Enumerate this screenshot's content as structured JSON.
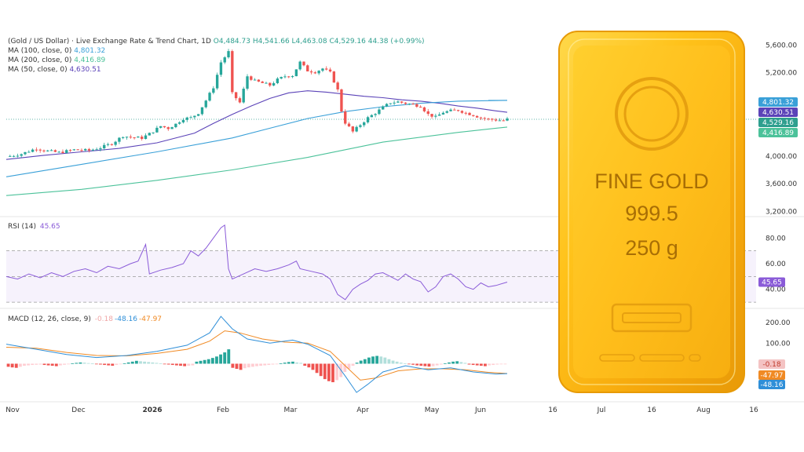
{
  "chart_data": [
    {
      "type": "candlestick",
      "title": "(Gold / US Dollar) · Live Exchange Rate & Trend Chart, 1D",
      "ohlc_label": {
        "o": "O4,484.73",
        "h": "H4,541.66",
        "l": "L4,463.08",
        "c": "C4,529.16",
        "change": "44.38 (+0.99%)"
      },
      "legend": [
        {
          "label": "MA (100, close, 0)",
          "value": "4,801.32",
          "color": "#3aa0d8"
        },
        {
          "label": "MA (200, close, 0)",
          "value": "4,416.89",
          "color": "#4cc29a"
        },
        {
          "label": "MA (50, close, 0)",
          "value": "4,630.51",
          "color": "#5b43b8"
        }
      ],
      "y_ticks": [
        "5,600.00",
        "5,200.00",
        "4,000.00",
        "3,600.00",
        "3,200.00"
      ],
      "y_tick_values": [
        5600,
        5200,
        4000,
        3600,
        3200
      ],
      "ylim": [
        3150,
        5750
      ],
      "x_ticks": [
        "Nov",
        "Dec",
        "2026",
        "Feb",
        "Mar",
        "Apr",
        "May",
        "Jun",
        "16",
        "Jul",
        "16",
        "Aug",
        "16"
      ],
      "price_badges": [
        {
          "text": "4,801.32",
          "value": 4801.32,
          "color": "#3aa0d8"
        },
        {
          "text": "4,630.51",
          "value": 4630.51,
          "color": "#5b43b8"
        },
        {
          "text": "4,529.16",
          "value": 4529.16,
          "color": "#2e9f8e"
        },
        {
          "text": "4,416.89",
          "value": 4416.89,
          "color": "#4cc29a"
        }
      ],
      "close_path": [
        [
          0,
          3990
        ],
        [
          4,
          4030
        ],
        [
          8,
          4110
        ],
        [
          10,
          4080
        ],
        [
          14,
          4050
        ],
        [
          18,
          4090
        ],
        [
          22,
          4080
        ],
        [
          25,
          4120
        ],
        [
          28,
          4180
        ],
        [
          31,
          4290
        ],
        [
          33,
          4270
        ],
        [
          36,
          4260
        ],
        [
          38,
          4320
        ],
        [
          41,
          4430
        ],
        [
          43,
          4400
        ],
        [
          45,
          4460
        ],
        [
          47,
          4540
        ],
        [
          49,
          4550
        ],
        [
          51,
          4620
        ],
        [
          53,
          4800
        ],
        [
          55,
          4990
        ],
        [
          57,
          5350
        ],
        [
          59,
          5500
        ],
        [
          60,
          4900
        ],
        [
          62,
          4770
        ],
        [
          64,
          5150
        ],
        [
          66,
          5080
        ],
        [
          68,
          5050
        ],
        [
          70,
          5020
        ],
        [
          72,
          5100
        ],
        [
          74,
          5150
        ],
        [
          76,
          5160
        ],
        [
          78,
          5350
        ],
        [
          80,
          5230
        ],
        [
          82,
          5210
        ],
        [
          84,
          5260
        ],
        [
          86,
          5200
        ],
        [
          88,
          4950
        ],
        [
          89,
          4650
        ],
        [
          90,
          4480
        ],
        [
          92,
          4350
        ],
        [
          94,
          4450
        ],
        [
          96,
          4550
        ],
        [
          98,
          4620
        ],
        [
          100,
          4700
        ],
        [
          102,
          4770
        ],
        [
          104,
          4780
        ],
        [
          106,
          4760
        ],
        [
          108,
          4740
        ],
        [
          110,
          4720
        ],
        [
          112,
          4600
        ],
        [
          114,
          4560
        ],
        [
          116,
          4630
        ],
        [
          118,
          4650
        ],
        [
          120,
          4660
        ],
        [
          122,
          4620
        ],
        [
          124,
          4590
        ],
        [
          126,
          4550
        ],
        [
          128,
          4530
        ],
        [
          130,
          4520
        ],
        [
          132,
          4510
        ],
        [
          133,
          4529
        ]
      ],
      "ma_lines": [
        {
          "name": "MA (50, close, 0)",
          "color": "#5b43b8",
          "points": [
            [
              0,
              3950
            ],
            [
              10,
              4010
            ],
            [
              20,
              4060
            ],
            [
              30,
              4110
            ],
            [
              40,
              4190
            ],
            [
              50,
              4330
            ],
            [
              55,
              4470
            ],
            [
              60,
              4600
            ],
            [
              65,
              4720
            ],
            [
              70,
              4830
            ],
            [
              75,
              4910
            ],
            [
              80,
              4940
            ],
            [
              85,
              4920
            ],
            [
              90,
              4890
            ],
            [
              95,
              4860
            ],
            [
              100,
              4840
            ],
            [
              105,
              4810
            ],
            [
              110,
              4790
            ],
            [
              115,
              4760
            ],
            [
              120,
              4720
            ],
            [
              125,
              4690
            ],
            [
              130,
              4650
            ],
            [
              133,
              4630
            ]
          ]
        },
        {
          "name": "MA (100, close, 0)",
          "color": "#3aa0d8",
          "points": [
            [
              0,
              3700
            ],
            [
              20,
              3880
            ],
            [
              40,
              4060
            ],
            [
              60,
              4260
            ],
            [
              70,
              4400
            ],
            [
              80,
              4540
            ],
            [
              90,
              4640
            ],
            [
              100,
              4710
            ],
            [
              110,
              4760
            ],
            [
              120,
              4790
            ],
            [
              133,
              4801
            ]
          ]
        },
        {
          "name": "MA (200, close, 0)",
          "color": "#4cc29a",
          "points": [
            [
              0,
              3430
            ],
            [
              20,
              3520
            ],
            [
              40,
              3650
            ],
            [
              60,
              3800
            ],
            [
              80,
              3980
            ],
            [
              100,
              4200
            ],
            [
              120,
              4340
            ],
            [
              133,
              4417
            ]
          ]
        }
      ]
    },
    {
      "type": "line",
      "title": "RSI (14)",
      "value_label": "45.65",
      "color": "#8a5bd8",
      "band": [
        30,
        70
      ],
      "y_ticks": [
        "80.00",
        "60.00",
        "40.00"
      ],
      "y_tick_values": [
        80,
        60,
        40
      ],
      "ylim": [
        27,
        93
      ],
      "badge": {
        "text": "45.65",
        "value": 45.65,
        "color": "#8a5bd8"
      },
      "points": [
        [
          0,
          50
        ],
        [
          3,
          48
        ],
        [
          6,
          52
        ],
        [
          9,
          49
        ],
        [
          12,
          53
        ],
        [
          15,
          50
        ],
        [
          18,
          54
        ],
        [
          21,
          56
        ],
        [
          24,
          53
        ],
        [
          27,
          58
        ],
        [
          30,
          56
        ],
        [
          33,
          60
        ],
        [
          35,
          62
        ],
        [
          37,
          75
        ],
        [
          38,
          52
        ],
        [
          41,
          55
        ],
        [
          44,
          57
        ],
        [
          47,
          60
        ],
        [
          49,
          70
        ],
        [
          51,
          66
        ],
        [
          53,
          72
        ],
        [
          55,
          80
        ],
        [
          57,
          88
        ],
        [
          58,
          90
        ],
        [
          59,
          56
        ],
        [
          60,
          48
        ],
        [
          63,
          52
        ],
        [
          66,
          56
        ],
        [
          69,
          54
        ],
        [
          72,
          56
        ],
        [
          75,
          59
        ],
        [
          77,
          62
        ],
        [
          78,
          56
        ],
        [
          81,
          54
        ],
        [
          84,
          52
        ],
        [
          86,
          48
        ],
        [
          88,
          36
        ],
        [
          90,
          32
        ],
        [
          92,
          40
        ],
        [
          94,
          44
        ],
        [
          96,
          47
        ],
        [
          98,
          52
        ],
        [
          100,
          53
        ],
        [
          102,
          50
        ],
        [
          104,
          47
        ],
        [
          106,
          52
        ],
        [
          108,
          48
        ],
        [
          110,
          46
        ],
        [
          112,
          38
        ],
        [
          114,
          42
        ],
        [
          116,
          50
        ],
        [
          118,
          52
        ],
        [
          120,
          48
        ],
        [
          122,
          42
        ],
        [
          124,
          40
        ],
        [
          126,
          45
        ],
        [
          128,
          42
        ],
        [
          130,
          43
        ],
        [
          133,
          45.65
        ]
      ]
    },
    {
      "type": "bar",
      "title": "MACD (12, 26, close, 9)",
      "value_labels": [
        {
          "text": "-0.18",
          "color": "#f0a6a6"
        },
        {
          "text": "-48.16",
          "color": "#2f8fd8"
        },
        {
          "text": "-47.97",
          "color": "#f08a24"
        }
      ],
      "y_ticks": [
        "200.00",
        "100.00"
      ],
      "y_tick_values": [
        200,
        100
      ],
      "ylim": [
        -170,
        250
      ],
      "badges": [
        {
          "text": "-0.18",
          "value": -0.18,
          "color": "#f4c3c3",
          "textColor": "#c0392b"
        },
        {
          "text": "-47.97",
          "value": -47.97,
          "color": "#f08a24"
        },
        {
          "text": "-48.16",
          "value": -48.16,
          "color": "#2f8fd8"
        }
      ],
      "macd_line": {
        "color": "#2f8fd8",
        "points": [
          [
            0,
            95
          ],
          [
            8,
            70
          ],
          [
            16,
            45
          ],
          [
            24,
            30
          ],
          [
            32,
            40
          ],
          [
            40,
            60
          ],
          [
            48,
            90
          ],
          [
            54,
            150
          ],
          [
            57,
            230
          ],
          [
            60,
            170
          ],
          [
            64,
            120
          ],
          [
            70,
            100
          ],
          [
            76,
            115
          ],
          [
            80,
            95
          ],
          [
            86,
            40
          ],
          [
            90,
            -60
          ],
          [
            93,
            -140
          ],
          [
            96,
            -100
          ],
          [
            100,
            -40
          ],
          [
            106,
            -10
          ],
          [
            112,
            -30
          ],
          [
            118,
            -20
          ],
          [
            124,
            -40
          ],
          [
            130,
            -50
          ],
          [
            133,
            -48.16
          ]
        ]
      },
      "signal_line": {
        "color": "#f08a24",
        "points": [
          [
            0,
            80
          ],
          [
            8,
            75
          ],
          [
            16,
            55
          ],
          [
            24,
            40
          ],
          [
            32,
            38
          ],
          [
            40,
            50
          ],
          [
            48,
            70
          ],
          [
            54,
            110
          ],
          [
            58,
            160
          ],
          [
            62,
            150
          ],
          [
            68,
            120
          ],
          [
            74,
            105
          ],
          [
            80,
            100
          ],
          [
            86,
            60
          ],
          [
            90,
            -10
          ],
          [
            94,
            -80
          ],
          [
            98,
            -70
          ],
          [
            104,
            -35
          ],
          [
            110,
            -25
          ],
          [
            116,
            -25
          ],
          [
            122,
            -30
          ],
          [
            128,
            -42
          ],
          [
            133,
            -47.97
          ]
        ]
      },
      "histogram": [
        -15,
        -18,
        -20,
        -15,
        -10,
        -8,
        -6,
        -5,
        -4,
        -6,
        -8,
        -10,
        -12,
        -8,
        -5,
        -2,
        2,
        4,
        6,
        5,
        3,
        1,
        -2,
        -4,
        -6,
        -8,
        -10,
        -6,
        -3,
        2,
        6,
        10,
        14,
        12,
        10,
        8,
        6,
        4,
        2,
        -2,
        -4,
        -6,
        -8,
        -10,
        -12,
        -10,
        -8,
        10,
        14,
        18,
        22,
        28,
        35,
        45,
        55,
        70,
        -20,
        -25,
        -30,
        -22,
        -18,
        -15,
        -12,
        -10,
        -8,
        -6,
        -4,
        -2,
        2,
        5,
        8,
        10,
        6,
        4,
        -10,
        -18,
        -30,
        -45,
        -60,
        -75,
        -85,
        -90,
        -80,
        -65,
        -40,
        -25,
        -10,
        5,
        15,
        22,
        30,
        35,
        38,
        35,
        30,
        22,
        15,
        10,
        5,
        2,
        -3,
        -5,
        -8,
        -10,
        -12,
        -14,
        -12,
        -8,
        -4,
        2,
        6,
        10,
        12,
        8,
        4,
        -4,
        -6,
        -8,
        -10,
        -12,
        -8,
        -6,
        -4,
        -2,
        -1
      ]
    }
  ],
  "gold_bar": {
    "line1": "FINE GOLD",
    "line2": "999.5",
    "line3": "250 g"
  }
}
